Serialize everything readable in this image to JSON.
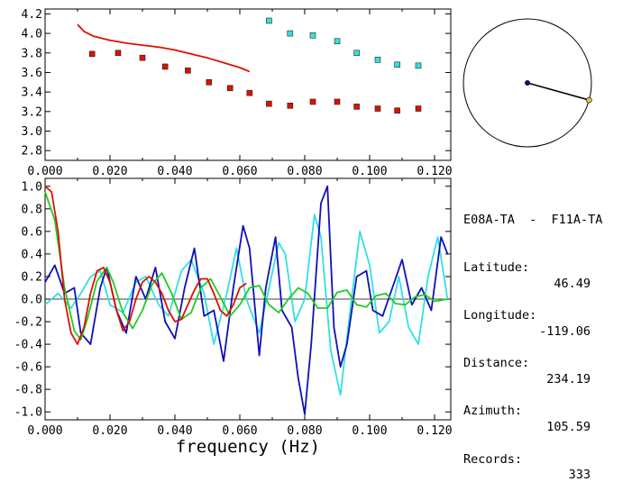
{
  "colors": {
    "red": "#dd1100",
    "cyan": "#33e0e0",
    "blue": "#1010b8",
    "green": "#22cc22",
    "orange": "#e8c050",
    "navy": "#101060"
  },
  "info": {
    "station_pair": "E08A-TA  -  F11A-TA",
    "rows": [
      {
        "key": "Latitude:",
        "value": "46.49"
      },
      {
        "key": "Longitude:",
        "value": "-119.06"
      },
      {
        "key": "Distance:",
        "value": "234.19"
      },
      {
        "key": "Azimuth:",
        "value": "105.59"
      },
      {
        "key": "Records:",
        "value": "333"
      }
    ]
  },
  "chart_data": [
    {
      "type": "scatter",
      "xlim": [
        0.0,
        0.125
      ],
      "ylim": [
        2.7,
        4.25
      ],
      "xticks": [
        "0.000",
        "0.020",
        "0.040",
        "0.060",
        "0.080",
        "0.100",
        "0.120"
      ],
      "yticks": [
        "2.8",
        "3.0",
        "3.2",
        "3.4",
        "3.6",
        "3.8",
        "4.0",
        "4.2"
      ],
      "series": [
        {
          "kind": "line",
          "color": "red",
          "x": [
            0.01,
            0.012,
            0.015,
            0.02,
            0.025,
            0.03,
            0.035,
            0.04,
            0.045,
            0.05,
            0.055,
            0.06,
            0.063
          ],
          "y": [
            4.09,
            4.02,
            3.97,
            3.93,
            3.9,
            3.88,
            3.86,
            3.83,
            3.79,
            3.75,
            3.7,
            3.65,
            3.61
          ]
        },
        {
          "kind": "markers",
          "color": "red",
          "x": [
            0.0145,
            0.0225,
            0.03,
            0.037,
            0.044,
            0.0505,
            0.057,
            0.063,
            0.069,
            0.0755,
            0.0825,
            0.09,
            0.096,
            0.1025,
            0.1085,
            0.115
          ],
          "y": [
            3.79,
            3.8,
            3.75,
            3.66,
            3.62,
            3.5,
            3.44,
            3.39,
            3.28,
            3.26,
            3.3,
            3.3,
            3.25,
            3.23,
            3.21,
            3.23
          ]
        },
        {
          "kind": "markers",
          "color": "cyan",
          "x": [
            0.069,
            0.0755,
            0.0825,
            0.09,
            0.096,
            0.1025,
            0.1085,
            0.115
          ],
          "y": [
            4.13,
            4.0,
            3.98,
            3.92,
            3.8,
            3.73,
            3.68,
            3.67
          ]
        }
      ]
    },
    {
      "type": "line",
      "xlabel": "frequency (Hz)",
      "xlim": [
        0.0,
        0.125
      ],
      "ylim": [
        -1.07,
        1.07
      ],
      "xticks": [
        "0.000",
        "0.020",
        "0.040",
        "0.060",
        "0.080",
        "0.100",
        "0.120"
      ],
      "yticks": [
        "1.0",
        "0.8",
        "0.6",
        "0.4",
        "0.2",
        "0.0",
        "-0.2",
        "-0.4",
        "-0.6",
        "-0.8",
        "-1.0"
      ],
      "series": [
        {
          "color": "cyan",
          "x": [
            0.0,
            0.004,
            0.008,
            0.011,
            0.014,
            0.017,
            0.02,
            0.024,
            0.028,
            0.031,
            0.035,
            0.038,
            0.042,
            0.045,
            0.049,
            0.052,
            0.056,
            0.059,
            0.062,
            0.066,
            0.069,
            0.072,
            0.074,
            0.077,
            0.08,
            0.083,
            0.085,
            0.088,
            0.091,
            0.094,
            0.097,
            0.1,
            0.103,
            0.106,
            0.109,
            0.112,
            0.115,
            0.118,
            0.121,
            0.124
          ],
          "y": [
            -0.05,
            0.05,
            -0.08,
            0.05,
            0.2,
            0.25,
            -0.05,
            -0.12,
            0.15,
            0.2,
            -0.05,
            -0.15,
            0.25,
            0.35,
            0.05,
            -0.4,
            0.05,
            0.45,
            0.0,
            -0.3,
            0.1,
            0.5,
            0.4,
            -0.2,
            0.0,
            0.75,
            0.55,
            -0.45,
            -0.85,
            -0.1,
            0.6,
            0.3,
            -0.3,
            -0.2,
            0.2,
            -0.25,
            -0.4,
            0.2,
            0.55,
            0.0
          ]
        },
        {
          "color": "blue",
          "x": [
            0.0,
            0.003,
            0.006,
            0.009,
            0.011,
            0.014,
            0.017,
            0.019,
            0.022,
            0.025,
            0.028,
            0.031,
            0.034,
            0.037,
            0.04,
            0.043,
            0.046,
            0.049,
            0.052,
            0.055,
            0.058,
            0.061,
            0.063,
            0.066,
            0.068,
            0.071,
            0.073,
            0.076,
            0.078,
            0.08,
            0.082,
            0.085,
            0.087,
            0.089,
            0.091,
            0.093,
            0.096,
            0.099,
            0.101,
            0.104,
            0.107,
            0.11,
            0.113,
            0.116,
            0.119,
            0.122,
            0.124
          ],
          "y": [
            0.15,
            0.3,
            0.05,
            0.1,
            -0.3,
            -0.4,
            0.1,
            0.28,
            -0.1,
            -0.3,
            0.2,
            0.0,
            0.28,
            -0.2,
            -0.35,
            0.1,
            0.45,
            -0.15,
            -0.1,
            -0.55,
            0.1,
            0.65,
            0.45,
            -0.5,
            0.1,
            0.55,
            -0.1,
            -0.25,
            -0.7,
            -1.02,
            -0.4,
            0.85,
            1.0,
            -0.25,
            -0.6,
            -0.4,
            0.2,
            0.25,
            -0.1,
            -0.15,
            0.1,
            0.35,
            -0.05,
            0.1,
            -0.1,
            0.55,
            0.4
          ]
        },
        {
          "color": "green",
          "x": [
            0.0,
            0.003,
            0.006,
            0.009,
            0.011,
            0.013,
            0.016,
            0.019,
            0.021,
            0.024,
            0.027,
            0.03,
            0.033,
            0.036,
            0.039,
            0.042,
            0.045,
            0.048,
            0.051,
            0.054,
            0.057,
            0.06,
            0.063,
            0.066,
            0.069,
            0.072,
            0.075,
            0.078,
            0.081,
            0.084,
            0.087,
            0.09,
            0.093,
            0.096,
            0.099,
            0.102,
            0.105,
            0.108,
            0.111,
            0.114,
            0.117,
            0.12,
            0.124
          ],
          "y": [
            0.95,
            0.7,
            0.1,
            -0.28,
            -0.36,
            -0.18,
            0.16,
            0.28,
            0.15,
            -0.12,
            -0.26,
            -0.1,
            0.13,
            0.23,
            0.05,
            -0.18,
            -0.12,
            0.1,
            0.18,
            0.02,
            -0.15,
            -0.05,
            0.1,
            0.12,
            -0.05,
            -0.12,
            0.0,
            0.1,
            0.05,
            -0.08,
            -0.08,
            0.06,
            0.08,
            -0.05,
            -0.07,
            0.03,
            0.05,
            -0.04,
            -0.05,
            0.02,
            0.04,
            -0.02,
            0.0
          ]
        },
        {
          "color": "red",
          "x": [
            0.0,
            0.002,
            0.004,
            0.006,
            0.008,
            0.01,
            0.012,
            0.014,
            0.016,
            0.018,
            0.02,
            0.022,
            0.024,
            0.026,
            0.028,
            0.03,
            0.032,
            0.034,
            0.036,
            0.038,
            0.04,
            0.042,
            0.044,
            0.046,
            0.048,
            0.05,
            0.052,
            0.054,
            0.056,
            0.058,
            0.06,
            0.062
          ],
          "y": [
            1.0,
            0.95,
            0.6,
            0.0,
            -0.3,
            -0.4,
            -0.25,
            0.05,
            0.25,
            0.28,
            0.15,
            -0.1,
            -0.28,
            -0.2,
            0.0,
            0.15,
            0.2,
            0.15,
            0.05,
            -0.1,
            -0.2,
            -0.18,
            -0.05,
            0.08,
            0.18,
            0.18,
            0.05,
            -0.1,
            -0.15,
            -0.05,
            0.1,
            0.14
          ]
        }
      ]
    }
  ],
  "map": {
    "azimuth_deg": 105.59
  }
}
